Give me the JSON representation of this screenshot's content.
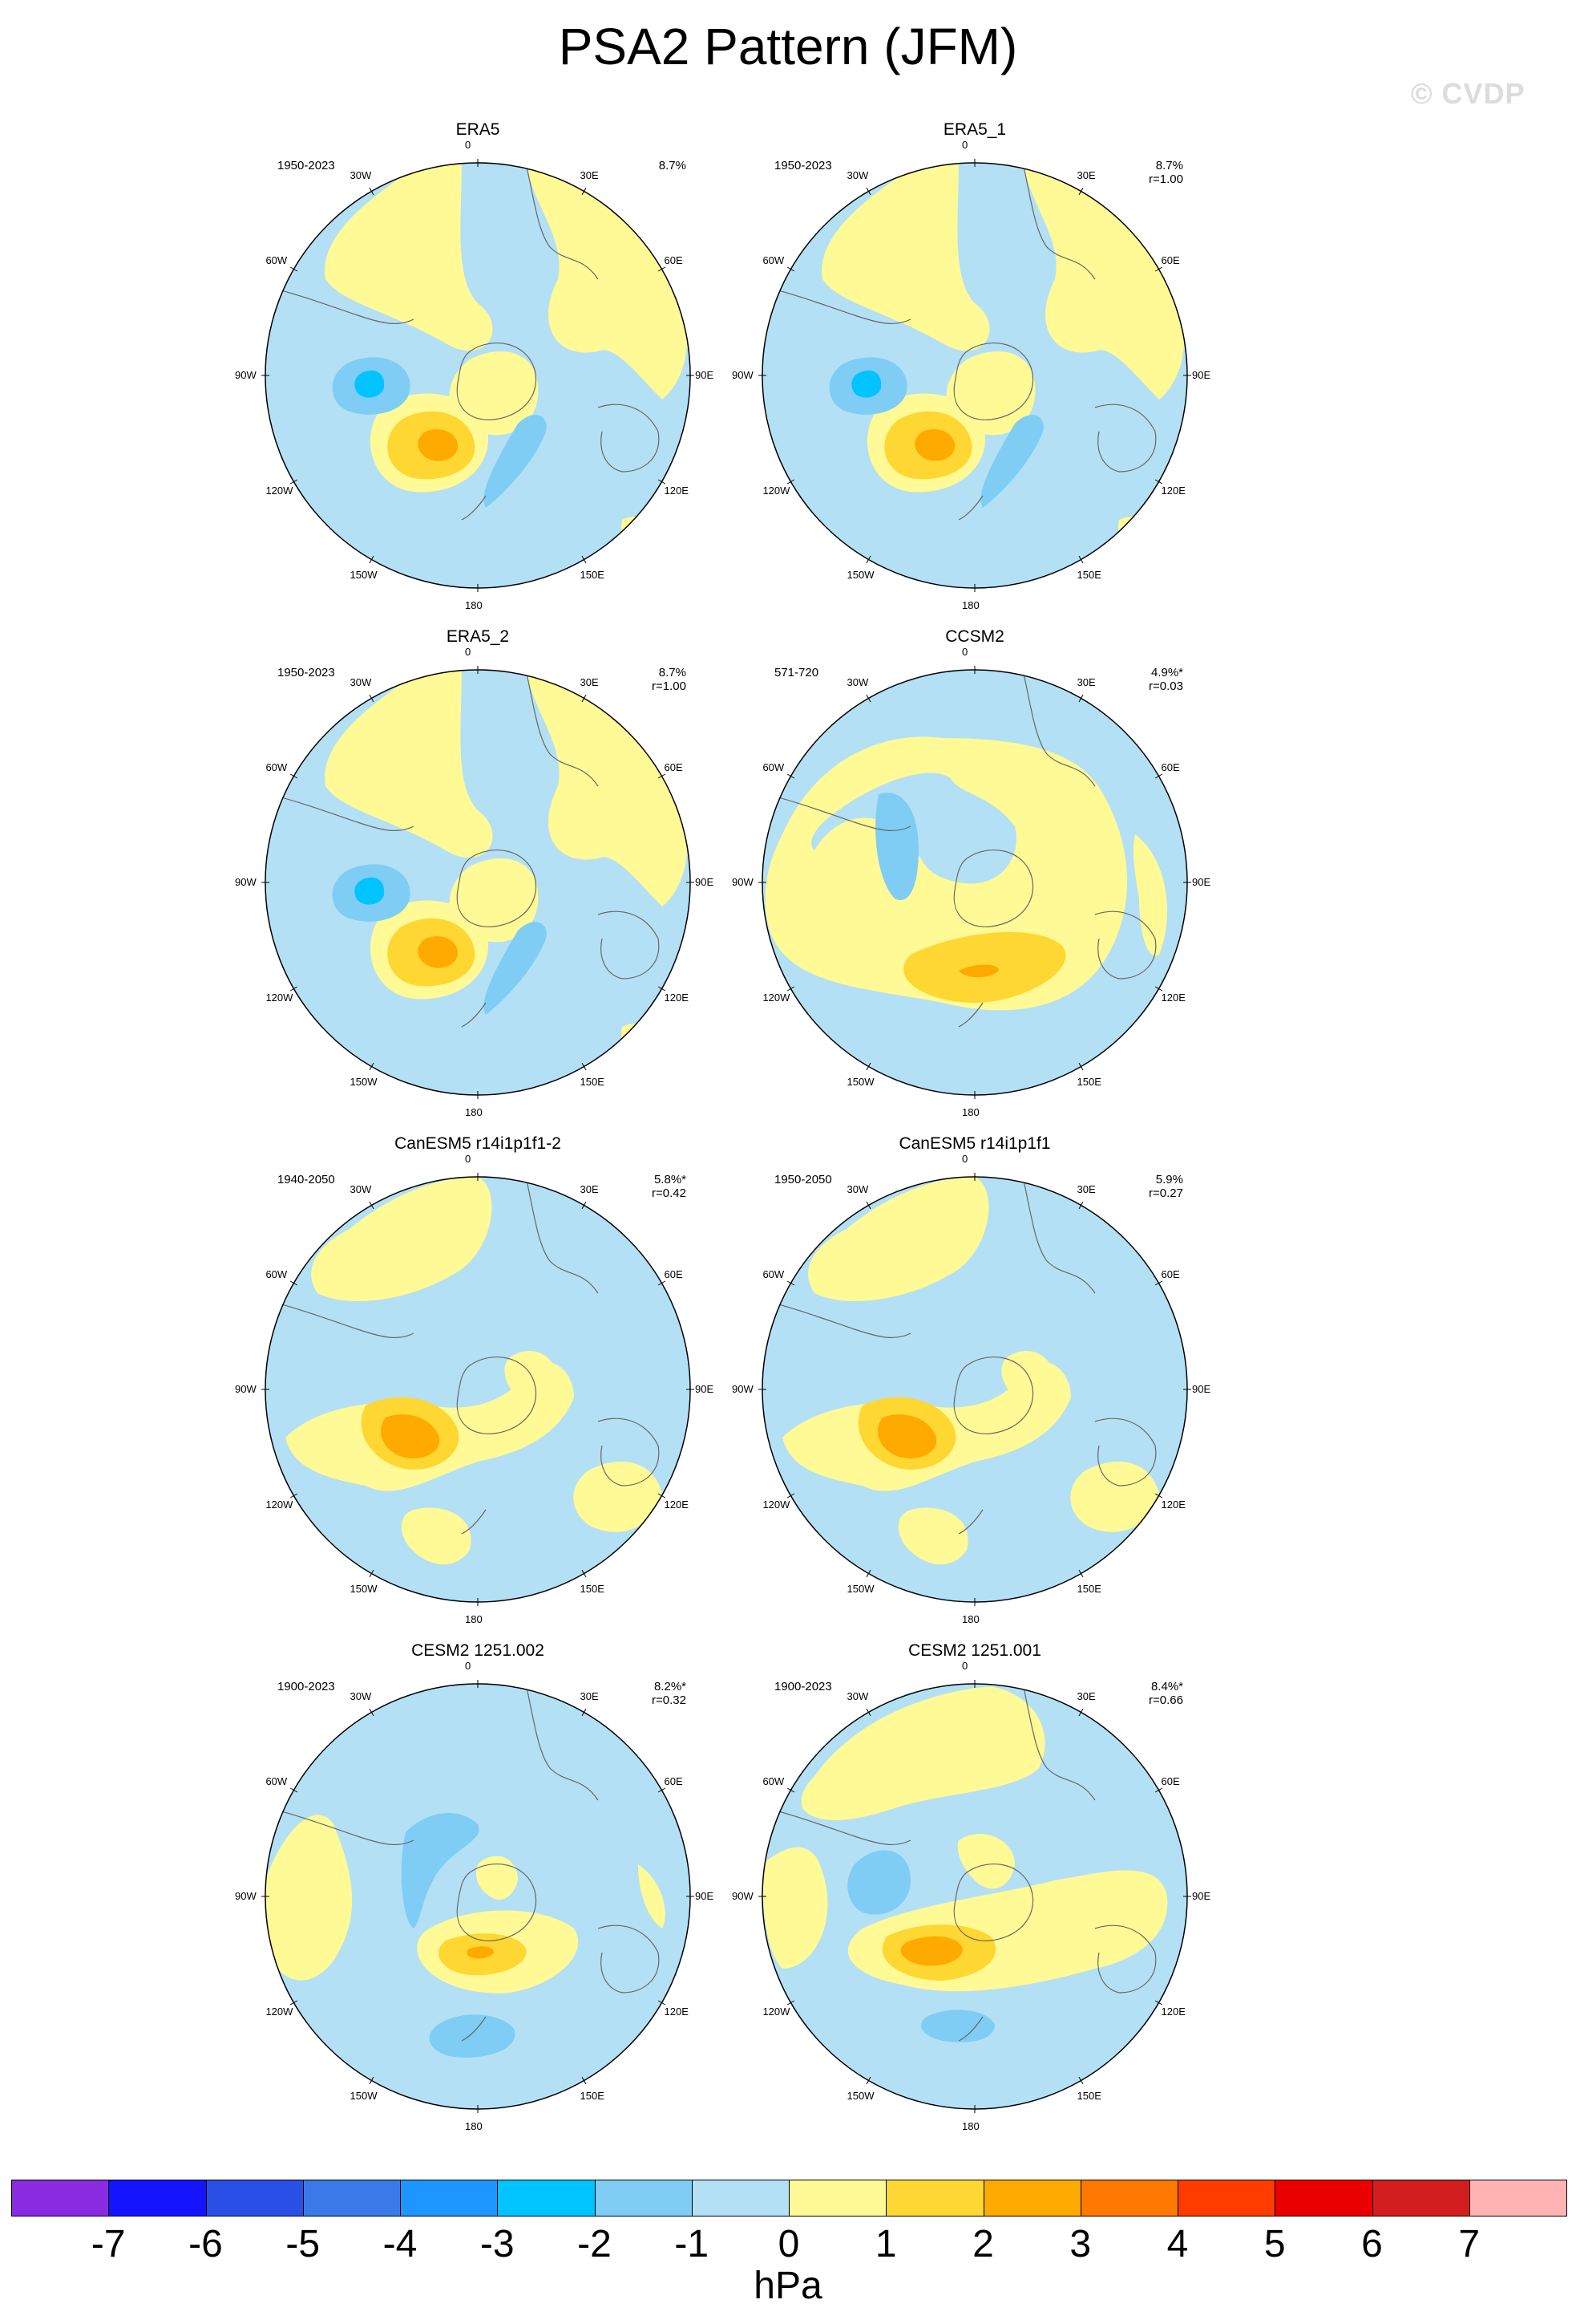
{
  "title": "PSA2 Pattern (JFM)",
  "watermark": "© CVDP",
  "lon_labels": [
    "0",
    "30E",
    "60E",
    "90E",
    "120E",
    "150E",
    "180",
    "150W",
    "120W",
    "90W",
    "60W",
    "30W"
  ],
  "panels": [
    {
      "title": "ERA5",
      "years": "1950-2023",
      "pct": "8.7%",
      "r": "",
      "pattern": "era5"
    },
    {
      "title": "ERA5_1",
      "years": "1950-2023",
      "pct": "8.7%",
      "r": "r=1.00",
      "pattern": "era5"
    },
    {
      "title": "ERA5_2",
      "years": "1950-2023",
      "pct": "8.7%",
      "r": "r=1.00",
      "pattern": "era5"
    },
    {
      "title": "CCSM2",
      "years": "571-720",
      "pct": "4.9%*",
      "r": "r=0.03",
      "pattern": "ccsm2"
    },
    {
      "title": "CanESM5 r14i1p1f1-2",
      "years": "1940-2050",
      "pct": "5.8%*",
      "r": "r=0.42",
      "pattern": "canesm"
    },
    {
      "title": "CanESM5 r14i1p1f1",
      "years": "1950-2050",
      "pct": "5.9%",
      "r": "r=0.27",
      "pattern": "canesm"
    },
    {
      "title": "CESM2 1251.002",
      "years": "1900-2023",
      "pct": "8.2%*",
      "r": "r=0.32",
      "pattern": "cesm2a"
    },
    {
      "title": "CESM2 1251.001",
      "years": "1900-2023",
      "pct": "8.4%*",
      "r": "r=0.66",
      "pattern": "cesm2b"
    }
  ],
  "colorbar": {
    "units": "hPa",
    "levels": [
      "-7",
      "-6",
      "-5",
      "-4",
      "-3",
      "-2",
      "-1",
      "0",
      "1",
      "2",
      "3",
      "4",
      "5",
      "6",
      "7"
    ],
    "colors": [
      "#8a2be2",
      "#1414ff",
      "#2a4fe6",
      "#3a7ae8",
      "#1e96ff",
      "#00c3ff",
      "#7fcdf5",
      "#b4e0f5",
      "#fffa96",
      "#ffd732",
      "#ffaa00",
      "#ff7800",
      "#ff3c00",
      "#eb0000",
      "#d21e1e",
      "#ffb4b4"
    ]
  },
  "chart_data": {
    "type": "contour map (polar stereographic, Southern Hemisphere)",
    "variable": "sea level pressure regression",
    "units": "hPa",
    "levels": [
      -7,
      -6,
      -5,
      -4,
      -3,
      -2,
      -1,
      0,
      1,
      2,
      3,
      4,
      5,
      6,
      7
    ],
    "panels": [
      {
        "name": "ERA5",
        "years": "1950-2023",
        "variance_explained": "8.7%",
        "pattern_correlation": null
      },
      {
        "name": "ERA5_1",
        "years": "1950-2023",
        "variance_explained": "8.7%",
        "pattern_correlation": 1.0
      },
      {
        "name": "ERA5_2",
        "years": "1950-2023",
        "variance_explained": "8.7%",
        "pattern_correlation": 1.0
      },
      {
        "name": "CCSM2",
        "years": "571-720",
        "variance_explained": "4.9%*",
        "pattern_correlation": 0.03
      },
      {
        "name": "CanESM5 r14i1p1f1-2",
        "years": "1940-2050",
        "variance_explained": "5.8%*",
        "pattern_correlation": 0.42
      },
      {
        "name": "CanESM5 r14i1p1f1",
        "years": "1950-2050",
        "variance_explained": "5.9%",
        "pattern_correlation": 0.27
      },
      {
        "name": "CESM2 1251.002",
        "years": "1900-2023",
        "variance_explained": "8.2%*",
        "pattern_correlation": 0.32
      },
      {
        "name": "CESM2 1251.001",
        "years": "1900-2023",
        "variance_explained": "8.4%*",
        "pattern_correlation": 0.66
      }
    ]
  }
}
